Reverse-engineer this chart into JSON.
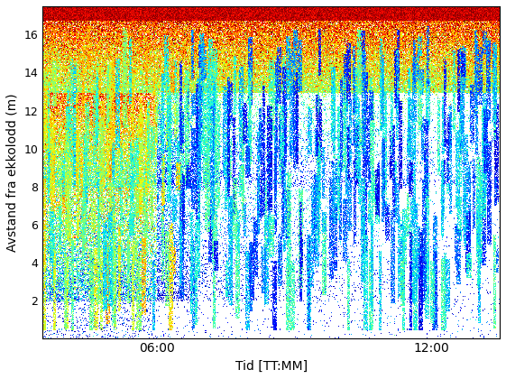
{
  "title": "",
  "xlabel": "Tid [TT:MM]",
  "ylabel": "Avstand fra ekkolodd (m)",
  "xlim": [
    3.5,
    13.5
  ],
  "ylim": [
    0,
    17.5
  ],
  "yticks": [
    2,
    4,
    6,
    8,
    10,
    12,
    14,
    16
  ],
  "xtick_labels": [
    "06:00",
    "12:00"
  ],
  "xtick_positions": [
    6.0,
    12.0
  ],
  "background_color": "#ffffff",
  "seed": 42,
  "n_time": 500,
  "n_depth": 350,
  "time_start": 3.5,
  "time_end": 13.5,
  "depth_min": 0.0,
  "depth_max": 17.5
}
